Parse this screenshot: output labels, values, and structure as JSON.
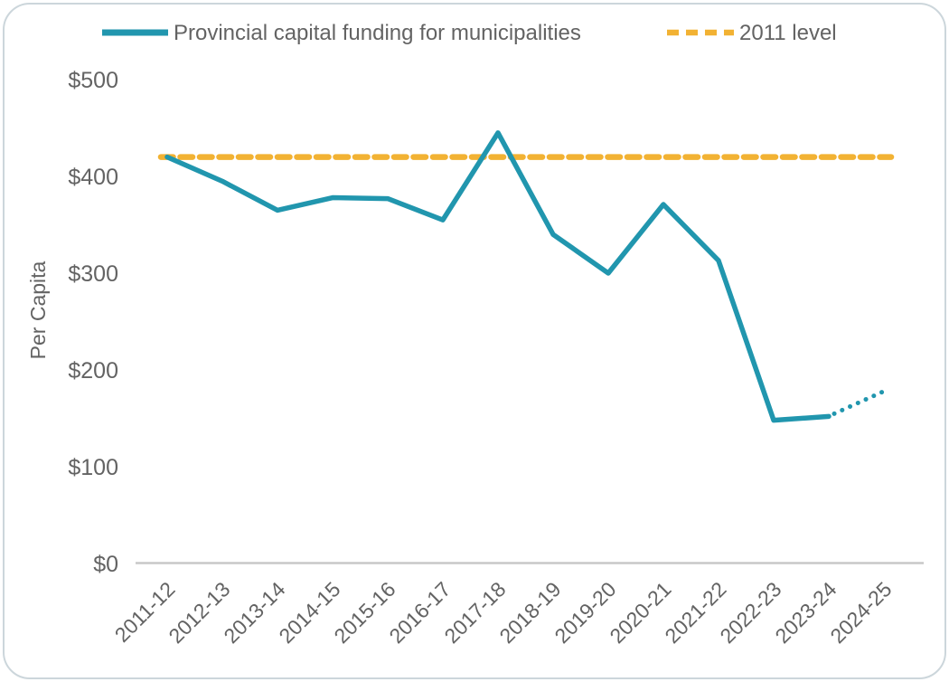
{
  "legend": {
    "series_label": "Provincial capital funding for municipalities",
    "baseline_label": "2011 level"
  },
  "chart_data": {
    "type": "line",
    "title": "",
    "xlabel": "",
    "ylabel": "Per Capita",
    "ylim": [
      0,
      500
    ],
    "grid": false,
    "legend_position": "top",
    "categories": [
      "2011-12",
      "2012-13",
      "2013-14",
      "2014-15",
      "2015-16",
      "2016-17",
      "2017-18",
      "2018-19",
      "2019-20",
      "2020-21",
      "2021-22",
      "2022-23",
      "2023-24",
      "2024-25"
    ],
    "y_tick_values": [
      0,
      100,
      200,
      300,
      400,
      500
    ],
    "y_tick_labels": [
      "$0",
      "$100",
      "$200",
      "$300",
      "$400",
      "$500"
    ],
    "series": [
      {
        "name": "Provincial capital funding for municipalities",
        "type": "line",
        "color": "#2196AE",
        "values": [
          420,
          395,
          365,
          378,
          377,
          355,
          445,
          340,
          300,
          371,
          313,
          148,
          152,
          178
        ],
        "projected_from_category": "2023-24",
        "projected_style": "dotted"
      },
      {
        "name": "2011 level",
        "type": "baseline",
        "color": "#F2B233",
        "style": "dashed",
        "value": 420
      }
    ]
  },
  "colors": {
    "series_teal": "#2196AE",
    "baseline_gold": "#F2B233",
    "text_gray": "#636363",
    "axis_gray": "#C8C8C8",
    "card_border": "#CCD6DB"
  }
}
